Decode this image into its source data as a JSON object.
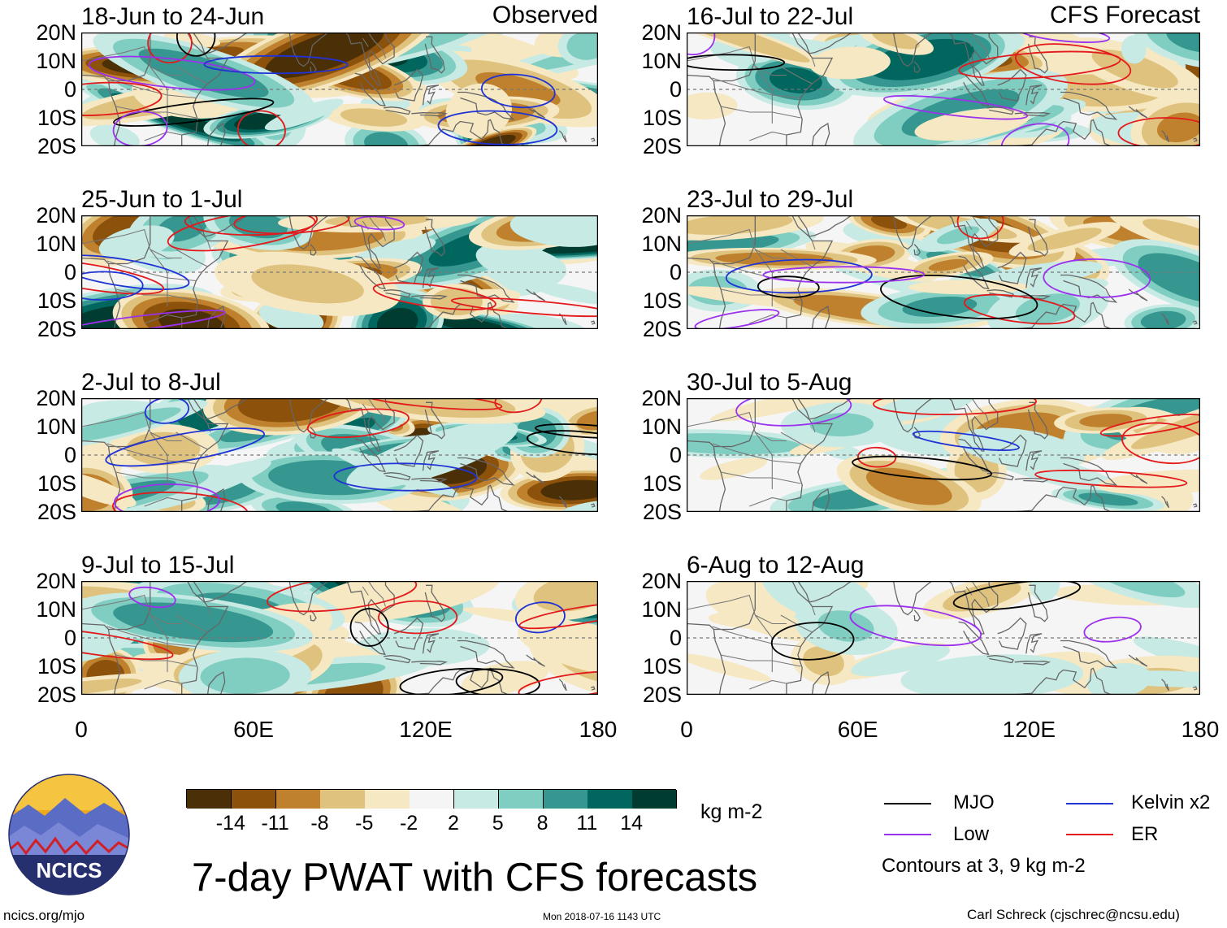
{
  "chart_data": {
    "type": "heatmap",
    "title": "7-day PWAT with CFS forecasts",
    "units": "kg m-2",
    "y_axis": {
      "range": [
        -20,
        20
      ],
      "ticks": [
        "20N",
        "10N",
        "0",
        "10S",
        "20S"
      ]
    },
    "x_axis": {
      "range": [
        0,
        180
      ],
      "ticks": [
        "0",
        "60E",
        "120E",
        "180"
      ]
    },
    "observed_label": "Observed",
    "forecast_label": "CFS Forecast",
    "panels": {
      "observed": [
        {
          "period": "18-Jun to 24-Jun"
        },
        {
          "period": "25-Jun to 1-Jul"
        },
        {
          "period": "2-Jul to 8-Jul"
        },
        {
          "period": "9-Jul to 15-Jul"
        }
      ],
      "forecast": [
        {
          "period": "16-Jul to 22-Jul"
        },
        {
          "period": "23-Jul to 29-Jul"
        },
        {
          "period": "30-Jul to 5-Aug"
        },
        {
          "period": "6-Aug to 12-Aug"
        }
      ]
    },
    "colorbar": {
      "boundaries": [
        "-14",
        "-11",
        "-8",
        "-5",
        "-2",
        "2",
        "5",
        "8",
        "11",
        "14"
      ],
      "colors": [
        "#4a2f07",
        "#8c510a",
        "#bf812d",
        "#dfc27d",
        "#f6e8c3",
        "#f5f5f5",
        "#c7eae5",
        "#80cdc1",
        "#35978f",
        "#01665e",
        "#003c30"
      ]
    },
    "legend": [
      {
        "label": "MJO",
        "color": "#000000"
      },
      {
        "label": "Kelvin x2",
        "color": "#1f33d6"
      },
      {
        "label": "Low",
        "color": "#9b30ef"
      },
      {
        "label": "ER",
        "color": "#e31a1c"
      }
    ],
    "contour_note": "Contours at 3, 9 kg m-2"
  },
  "footer": {
    "logo_text": "NCICS",
    "site": "ncics.org/mjo",
    "timestamp": "Mon 2018-07-16 1143 UTC",
    "author": "Carl Schreck (cjschrec@ncsu.edu)"
  }
}
